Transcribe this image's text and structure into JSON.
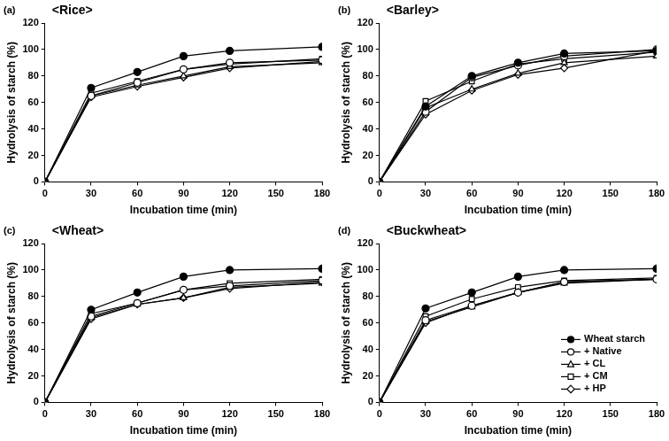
{
  "chart_data": [
    {
      "type": "line",
      "annotation": "(a)",
      "title": "<Rice>",
      "x_label": "Incubation time (min)",
      "y_label": "Hydrolysis of starch (%)",
      "x": [
        0,
        30,
        60,
        90,
        120,
        180
      ],
      "xlim": [
        0,
        180
      ],
      "xticks": [
        0,
        30,
        60,
        90,
        120,
        150,
        180
      ],
      "ylim": [
        0,
        120
      ],
      "yticks": [
        0,
        20,
        40,
        60,
        80,
        100,
        120
      ],
      "grid": false,
      "series": [
        {
          "name": "Wheat starch",
          "color": "#000000",
          "marker": "filled_circle",
          "values": [
            0,
            71,
            83,
            95,
            99,
            102
          ]
        },
        {
          "name": "+ Native",
          "color": "#000000",
          "marker": "circle",
          "values": [
            0,
            65,
            75,
            85,
            90,
            92
          ]
        },
        {
          "name": "+ CL",
          "color": "#000000",
          "marker": "triangle",
          "values": [
            0,
            65,
            73,
            80,
            87,
            90
          ]
        },
        {
          "name": "+ CM",
          "color": "#000000",
          "marker": "square",
          "values": [
            0,
            67,
            76,
            85,
            89,
            93
          ]
        },
        {
          "name": "+ HP",
          "color": "#000000",
          "marker": "diamond",
          "values": [
            0,
            64,
            72,
            79,
            86,
            91
          ]
        }
      ]
    },
    {
      "type": "line",
      "annotation": "(b)",
      "title": "<Barley>",
      "x_label": "Incubation time (min)",
      "y_label": "Hydrolysis of starch (%)",
      "x": [
        0,
        30,
        60,
        90,
        120,
        180
      ],
      "xlim": [
        0,
        180
      ],
      "xticks": [
        0,
        30,
        60,
        90,
        120,
        150,
        180
      ],
      "ylim": [
        0,
        120
      ],
      "yticks": [
        0,
        20,
        40,
        60,
        80,
        100,
        120
      ],
      "grid": false,
      "series": [
        {
          "name": "Wheat starch",
          "color": "#000000",
          "marker": "filled_circle",
          "values": [
            0,
            57,
            80,
            90,
            97,
            99
          ]
        },
        {
          "name": "+ Native",
          "color": "#000000",
          "marker": "circle",
          "values": [
            0,
            53,
            79,
            88,
            95,
            100
          ]
        },
        {
          "name": "+ CL",
          "color": "#000000",
          "marker": "triangle",
          "values": [
            0,
            56,
            70,
            82,
            90,
            95
          ]
        },
        {
          "name": "+ CM",
          "color": "#000000",
          "marker": "square",
          "values": [
            0,
            61,
            76,
            89,
            93,
            98
          ]
        },
        {
          "name": "+ HP",
          "color": "#000000",
          "marker": "diamond",
          "values": [
            0,
            51,
            69,
            81,
            86,
            99
          ]
        }
      ]
    },
    {
      "type": "line",
      "annotation": "(c)",
      "title": "<Wheat>",
      "x_label": "Incubation time (min)",
      "y_label": "Hydrolysis of starch (%)",
      "x": [
        0,
        30,
        60,
        90,
        120,
        180
      ],
      "xlim": [
        0,
        180
      ],
      "xticks": [
        0,
        30,
        60,
        90,
        120,
        150,
        180
      ],
      "ylim": [
        0,
        120
      ],
      "yticks": [
        0,
        20,
        40,
        60,
        80,
        100,
        120
      ],
      "grid": false,
      "series": [
        {
          "name": "Wheat starch",
          "color": "#000000",
          "marker": "filled_circle",
          "values": [
            0,
            70,
            83,
            95,
            100,
            101
          ]
        },
        {
          "name": "+ Native",
          "color": "#000000",
          "marker": "circle",
          "values": [
            0,
            65,
            75,
            85,
            88,
            92
          ]
        },
        {
          "name": "+ CL",
          "color": "#000000",
          "marker": "triangle",
          "values": [
            0,
            64,
            74,
            79,
            87,
            90
          ]
        },
        {
          "name": "+ CM",
          "color": "#000000",
          "marker": "square",
          "values": [
            0,
            67,
            75,
            85,
            90,
            93
          ]
        },
        {
          "name": "+ HP",
          "color": "#000000",
          "marker": "diamond",
          "values": [
            0,
            63,
            74,
            79,
            86,
            91
          ]
        }
      ]
    },
    {
      "type": "line",
      "annotation": "(d)",
      "title": "<Buckwheat>",
      "x_label": "Incubation time (min)",
      "y_label": "Hydrolysis of starch (%)",
      "x": [
        0,
        30,
        60,
        90,
        120,
        180
      ],
      "xlim": [
        0,
        180
      ],
      "xticks": [
        0,
        30,
        60,
        90,
        120,
        150,
        180
      ],
      "ylim": [
        0,
        120
      ],
      "yticks": [
        0,
        20,
        40,
        60,
        80,
        100,
        120
      ],
      "grid": false,
      "legend": "lower right",
      "series": [
        {
          "name": "Wheat starch",
          "color": "#000000",
          "marker": "filled_circle",
          "values": [
            0,
            71,
            83,
            95,
            100,
            101
          ]
        },
        {
          "name": "+ Native",
          "color": "#000000",
          "marker": "circle",
          "values": [
            0,
            62,
            73,
            83,
            91,
            93
          ]
        },
        {
          "name": "+ CL",
          "color": "#000000",
          "marker": "triangle",
          "values": [
            0,
            61,
            72,
            83,
            90,
            93
          ]
        },
        {
          "name": "+ CM",
          "color": "#000000",
          "marker": "square",
          "values": [
            0,
            65,
            78,
            87,
            92,
            94
          ]
        },
        {
          "name": "+ HP",
          "color": "#000000",
          "marker": "diamond",
          "values": [
            0,
            60,
            73,
            83,
            91,
            93
          ]
        }
      ]
    }
  ]
}
